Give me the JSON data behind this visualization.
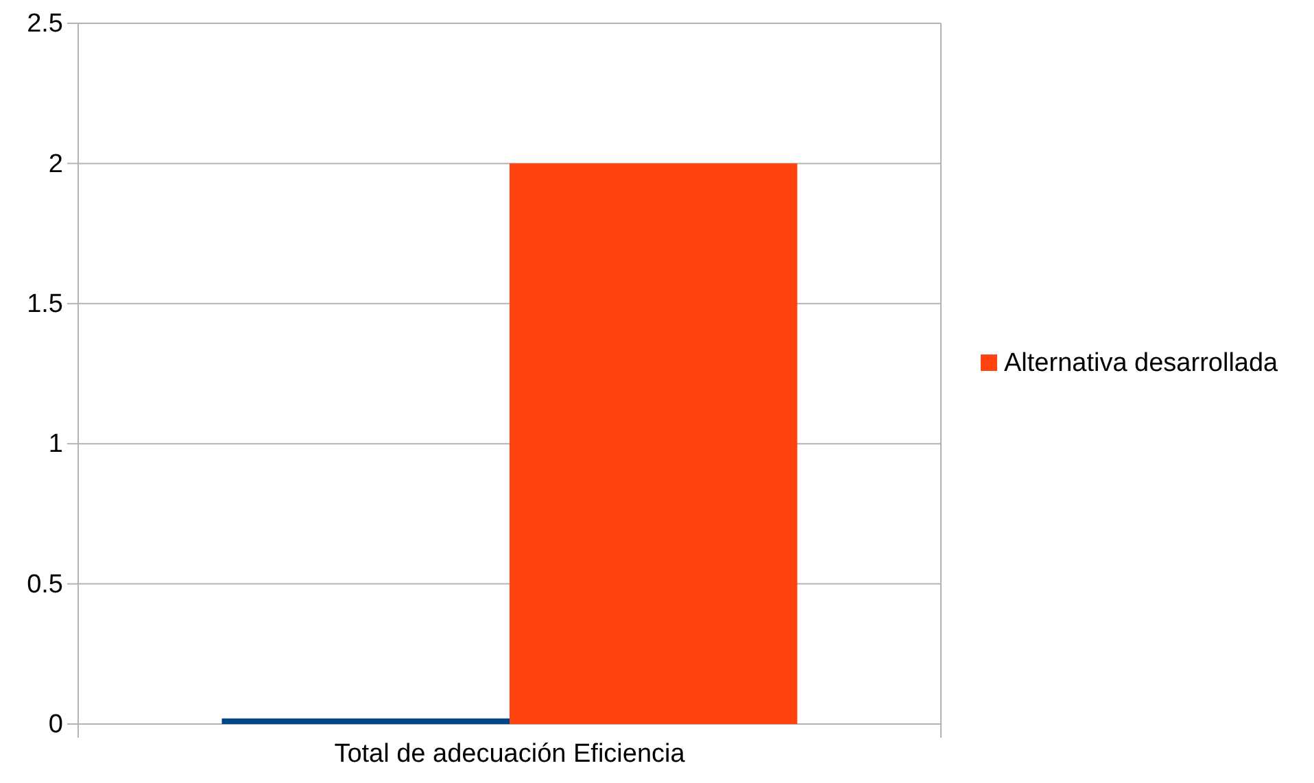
{
  "chart_data": {
    "type": "bar",
    "categories": [
      "Total de adecuación Eficiencia"
    ],
    "series": [
      {
        "color": "#004586",
        "values": [
          0.02
        ]
      },
      {
        "name": "Alternativa desarrollada",
        "color": "#ff420e",
        "values": [
          2
        ]
      }
    ],
    "ylim": [
      0,
      2.5
    ],
    "yticks": [
      0,
      0.5,
      1,
      1.5,
      2,
      2.5
    ],
    "grid": "y",
    "legend": "right"
  }
}
